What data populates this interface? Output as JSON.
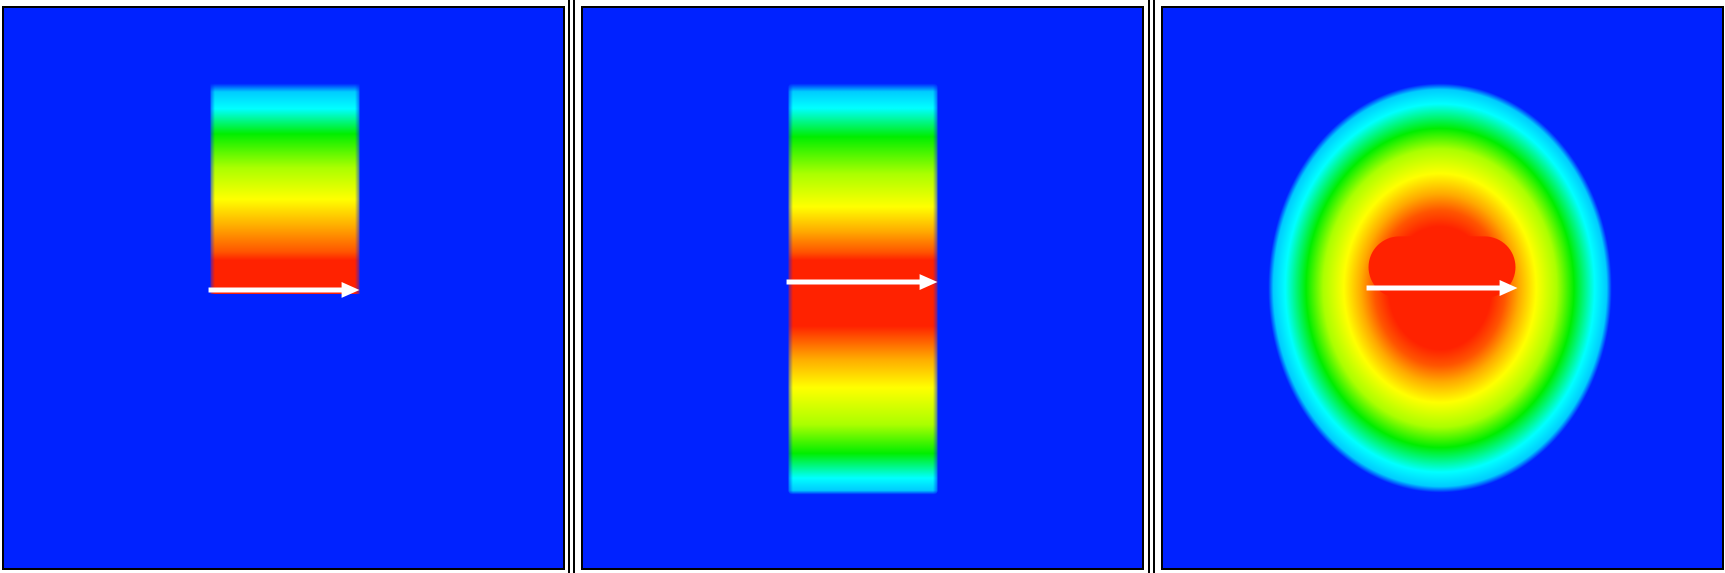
{
  "colors": {
    "background": "#0022ff",
    "cyan": "#00ffff",
    "green": "#00ee00",
    "yellow": "#ffff00",
    "orange": "#ff8800",
    "red": "#ff2200",
    "arrow": "#ffffff",
    "border": "#000000"
  },
  "panels": [
    {
      "id": "panel-1",
      "description_icon": "half-slab-contour"
    },
    {
      "id": "panel-2",
      "description_icon": "full-slab-contour"
    },
    {
      "id": "panel-3",
      "description_icon": "elliptical-contour"
    }
  ]
}
